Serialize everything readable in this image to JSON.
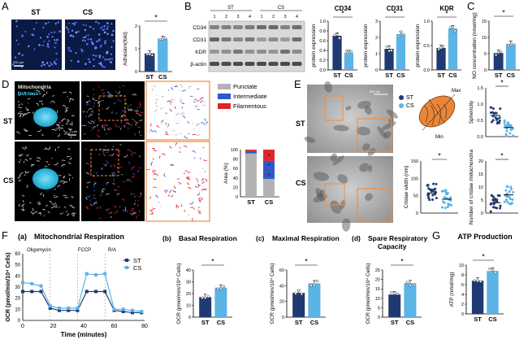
{
  "colors": {
    "st": "#1f3a73",
    "cs": "#5bb3e6",
    "punctate": "#b3b3b3",
    "intermediate": "#2f58c9",
    "filamentous": "#e0242b",
    "nucleus": "#3fc4e8",
    "accent": "#f08c3c"
  },
  "panelA": {
    "letter": "A",
    "label_st": "ST",
    "label_cs": "CS",
    "scale": "200 μm",
    "star": "*",
    "chart_data": {
      "type": "bar",
      "categories": [
        "ST",
        "CS"
      ],
      "values": [
        1.0,
        1.8
      ],
      "ylabel": "Adhesion(fold)",
      "ylim": [
        0,
        2.5
      ],
      "yticks": [
        "0",
        "1",
        "2"
      ]
    }
  },
  "panelB": {
    "letter": "B",
    "group_st": "ST",
    "group_cs": "CS",
    "lanes": [
      "1",
      "2",
      "3",
      "4",
      "1",
      "2",
      "3",
      "4"
    ],
    "bands": [
      "CD34",
      "CD31",
      "KDR",
      "β-actin"
    ],
    "charts": [
      {
        "title": "CD34",
        "star": "*",
        "type": "bar",
        "categories": [
          "ST",
          "CS"
        ],
        "values": [
          0.7,
          0.35
        ],
        "ylabel": "protein expression",
        "ylim": [
          0,
          1.0
        ],
        "yticks": [
          "0.0",
          "0.2",
          "0.4",
          "0.6",
          "0.8",
          "1.0"
        ]
      },
      {
        "title": "CD31",
        "star": "*",
        "type": "bar",
        "categories": [
          "ST",
          "CS"
        ],
        "values": [
          1.3,
          2.2
        ],
        "ylabel": "protein expression",
        "ylim": [
          0,
          3
        ],
        "yticks": [
          "0",
          "1",
          "2",
          "3"
        ]
      },
      {
        "title": "KDR",
        "star": "*",
        "type": "bar",
        "categories": [
          "ST",
          "CS"
        ],
        "values": [
          0.45,
          0.85
        ],
        "ylabel": "protein expression",
        "ylim": [
          0,
          1.0
        ],
        "yticks": [
          "0.0",
          "0.5",
          "1.0"
        ]
      }
    ]
  },
  "panelC": {
    "letter": "C",
    "star": "*",
    "chart_data": {
      "type": "bar",
      "categories": [
        "ST",
        "CS"
      ],
      "values": [
        5.2,
        8.0
      ],
      "ylabel": "NO concentration (nmol/mg)",
      "ylim": [
        0,
        15
      ],
      "yticks": [
        "0",
        "5",
        "10",
        "15"
      ]
    }
  },
  "panelD": {
    "letter": "D",
    "mitochondria": "Mitochondria",
    "nucleus": "Nucleus",
    "row_st": "ST",
    "row_cs": "CS",
    "scale": "2 μm",
    "legend": [
      "Punctate",
      "Intermediate",
      "Filamentous"
    ],
    "chart_data": {
      "type": "bar",
      "categories": [
        "ST",
        "CS"
      ],
      "series": [
        {
          "name": "Punctate",
          "values": [
            92,
            38
          ]
        },
        {
          "name": "Intermediate",
          "values": [
            5,
            38
          ]
        },
        {
          "name": "Filamentous",
          "values": [
            3,
            24
          ]
        }
      ],
      "ylabel": "Area (%)",
      "ylim": [
        0,
        100
      ],
      "yticks": [
        "0",
        "20",
        "40",
        "60",
        "80",
        "100"
      ],
      "stars": [
        "*",
        "*",
        "*"
      ]
    }
  },
  "panelE": {
    "letter": "E",
    "row_st": "ST",
    "row_cs": "CS",
    "scale": "500 nm",
    "legend_st": "ST",
    "legend_cs": "CS",
    "max": "Max",
    "min": "Min",
    "charts": [
      {
        "name": "sphericity",
        "star": "*",
        "type": "scatter",
        "categories": [
          "ST",
          "CS"
        ],
        "values": [
          0.65,
          0.28
        ],
        "ylabel": "Sphericity",
        "ylim": [
          0,
          1.5
        ],
        "yticks": [
          "0.0",
          "0.5",
          "1.0",
          "1.5"
        ]
      },
      {
        "name": "cristae-width",
        "star": "*",
        "type": "scatter",
        "categories": [
          "ST",
          "CS"
        ],
        "values": [
          58,
          40
        ],
        "ylabel": "Cristae width (nm)",
        "ylim": [
          0,
          150
        ],
        "yticks": [
          "0",
          "50",
          "100",
          "150"
        ]
      },
      {
        "name": "cristae-number",
        "star": "*",
        "type": "scatter",
        "categories": [
          "ST",
          "CS"
        ],
        "values": [
          4,
          7
        ],
        "ylabel": "Number of cristae /mitochondria",
        "ylim": [
          0,
          20
        ],
        "yticks": [
          "0",
          "5",
          "10",
          "15",
          "20"
        ]
      }
    ]
  },
  "panelF": {
    "letter": "F",
    "sub_a": "(a)",
    "title_a": "Mitochondrial Respiration",
    "markers": [
      "Oligomycin",
      "FCCP",
      "R/A"
    ],
    "chart_data": {
      "type": "line",
      "x": [
        0,
        6,
        12,
        18,
        24,
        30,
        36,
        42,
        48,
        54,
        60,
        66,
        72,
        78
      ],
      "series": [
        {
          "name": "ST",
          "values": [
            26,
            26,
            26,
            11,
            9,
            9,
            9,
            26,
            26,
            26,
            9,
            8,
            7,
            7
          ]
        },
        {
          "name": "CS",
          "values": [
            34,
            33,
            31,
            13,
            11,
            11,
            11,
            42,
            41,
            42,
            10,
            10,
            9,
            8
          ]
        }
      ],
      "xlabel": "Time (minutes)",
      "ylabel": "OCR (pmol/min/10⁴ Cells)",
      "ylim": [
        0,
        60
      ],
      "xlim": [
        0,
        80
      ],
      "yticks": [
        "0",
        "10",
        "20",
        "30",
        "40",
        "50",
        "60"
      ],
      "xticks": [
        "0",
        "20",
        "40",
        "60",
        "80"
      ]
    },
    "bars": [
      {
        "sub": "(b)",
        "title": "Basal Respiration",
        "title2": "",
        "star": "*",
        "type": "bar",
        "categories": [
          "ST",
          "CS"
        ],
        "values": [
          17,
          25
        ],
        "ylabel": "OCR (pmol/min/10⁴ Cells)",
        "ylim": [
          0,
          40
        ],
        "yticks": [
          "0",
          "10",
          "20",
          "30",
          "40"
        ]
      },
      {
        "sub": "(c)",
        "title": "Maximal Respiration",
        "title2": "",
        "star": "*",
        "type": "bar",
        "categories": [
          "ST",
          "CS"
        ],
        "values": [
          31,
          43
        ],
        "ylabel": "OCR (pmol/min/10⁴ Cells)",
        "ylim": [
          0,
          60
        ],
        "yticks": [
          "0",
          "20",
          "40",
          "60"
        ]
      },
      {
        "sub": "(d)",
        "title": "Spare Respiratory",
        "title2": "Capacity",
        "star": "*",
        "type": "bar",
        "categories": [
          "ST",
          "CS"
        ],
        "values": [
          12,
          18
        ],
        "ylabel": "OCR (pmol/min/10⁴ Cells)",
        "ylim": [
          0,
          25
        ],
        "yticks": [
          "0",
          "5",
          "10",
          "15",
          "20",
          "25"
        ]
      }
    ]
  },
  "panelG": {
    "letter": "G",
    "title": "ATP Production",
    "star": "*",
    "chart_data": {
      "type": "bar",
      "categories": [
        "ST",
        "CS"
      ],
      "values": [
        6.8,
        8.8
      ],
      "ylabel": "ATP (nmol/mg)",
      "ylim": [
        0,
        10
      ],
      "yticks": [
        "0",
        "2",
        "4",
        "6",
        "8",
        "10"
      ]
    }
  }
}
